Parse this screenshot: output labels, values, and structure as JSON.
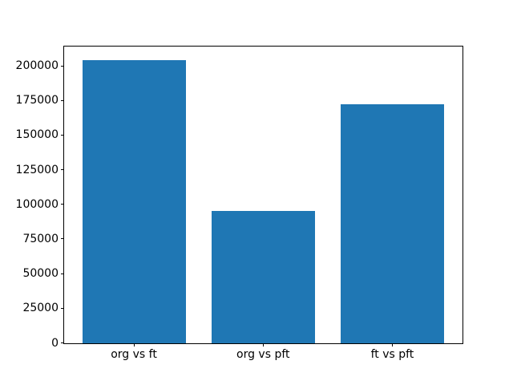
{
  "figure": {
    "background": "#ffffff",
    "spine_color": "#000000",
    "text_color": "#000000"
  },
  "chart_data": {
    "type": "bar",
    "categories": [
      "org vs ft",
      "org vs pft",
      "ft vs pft"
    ],
    "values": [
      204000,
      95000,
      172500
    ],
    "title": "",
    "xlabel": "",
    "ylabel": "",
    "ylim": [
      0,
      214200
    ],
    "yticks": [
      0,
      25000,
      50000,
      75000,
      100000,
      125000,
      150000,
      175000,
      200000
    ],
    "bar_color": "#1f77b4",
    "bar_width_fraction": 0.8,
    "grid": false,
    "legend": "none"
  }
}
